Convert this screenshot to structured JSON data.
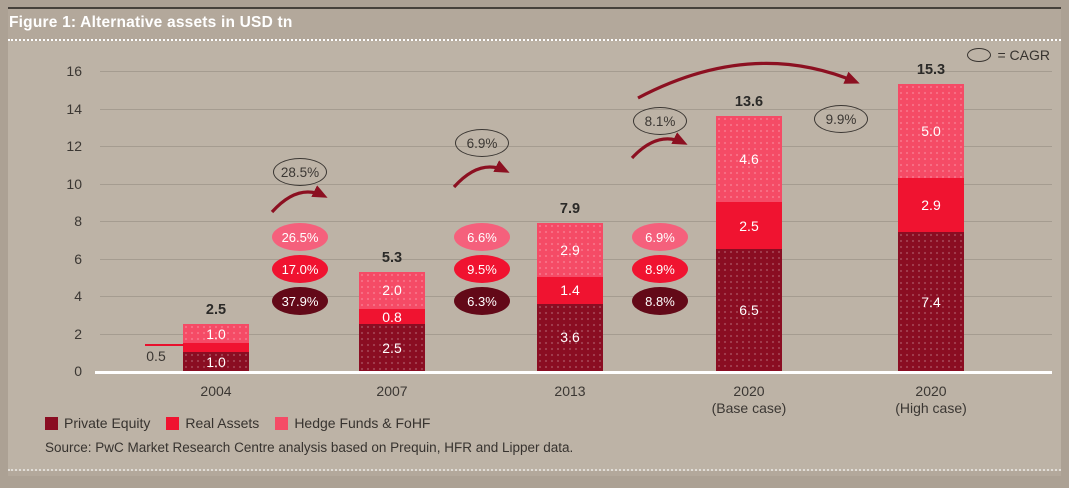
{
  "figure": {
    "title": "Figure 1: Alternative assets in USD tn",
    "cagr_note": "= CAGR",
    "source": "Source: PwC Market Research Centre analysis based on Prequin, HFR and Lipper data."
  },
  "colors": {
    "private_equity": "#8a0d22",
    "real_assets": "#f01330",
    "hedge_funds": "#f54b66",
    "oval_private_equity": "#630918",
    "oval_real_assets": "#f01330",
    "oval_hedge_funds": "#f5607c",
    "arrow": "#8c1021",
    "background": "#bdb3a6"
  },
  "chart_data": {
    "type": "bar",
    "stacked": true,
    "title": "Figure 1: Alternative assets in USD tn",
    "unit": "USD tn",
    "categories": [
      "2004",
      "2007",
      "2013",
      "2020\n(Base case)",
      "2020\n(High case)"
    ],
    "series": [
      {
        "name": "Private Equity",
        "key": "pe",
        "values": [
          1.0,
          2.5,
          3.6,
          6.5,
          7.4
        ]
      },
      {
        "name": "Real Assets",
        "key": "ra",
        "values": [
          0.5,
          0.8,
          1.4,
          2.5,
          2.9
        ]
      },
      {
        "name": "Hedge Funds & FoHF",
        "key": "hf",
        "values": [
          1.0,
          2.0,
          2.9,
          4.6,
          5.0
        ]
      }
    ],
    "totals": [
      2.5,
      5.3,
      7.9,
      13.6,
      15.3
    ],
    "callout": {
      "category_index": 0,
      "series_index": 1,
      "label": "0.5"
    },
    "ylim": [
      0,
      16
    ],
    "yticks": [
      0,
      2,
      4,
      6,
      8,
      10,
      12,
      14,
      16
    ],
    "grid": true,
    "legend_position": "bottom",
    "cagr": [
      {
        "between": "2004-2007",
        "total": "28.5%",
        "hedge_funds": "26.5%",
        "real_assets": "17.0%",
        "private_equity": "37.9%"
      },
      {
        "between": "2007-2013",
        "total": "6.9%",
        "hedge_funds": "6.6%",
        "real_assets": "9.5%",
        "private_equity": "6.3%"
      },
      {
        "between": "2013-2020 (Base case)",
        "total": "8.1%",
        "hedge_funds": "6.9%",
        "real_assets": "8.9%",
        "private_equity": "8.8%"
      },
      {
        "between": "2020 (Base case)-2020 (High case)",
        "total": "9.9%"
      }
    ]
  }
}
